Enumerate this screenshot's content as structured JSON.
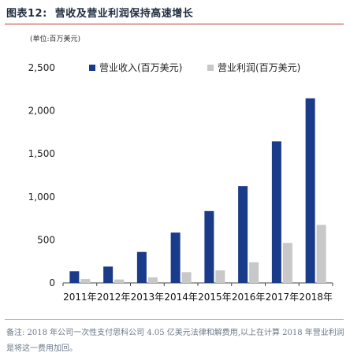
{
  "figure": {
    "label": "图表12:",
    "title": "营收及营业利润保持高速增长",
    "unit": "(单位:百万美元)"
  },
  "chart_data": {
    "type": "bar",
    "categories": [
      "2011年",
      "2012年",
      "2013年",
      "2014年",
      "2015年",
      "2016年",
      "2017年",
      "2018年"
    ],
    "series": [
      {
        "name": "营业收入(百万美元)",
        "color": "#1a3a8a",
        "values": [
          135,
          190,
          360,
          585,
          835,
          1125,
          1645,
          2145
        ]
      },
      {
        "name": "营业利润(百万美元)",
        "color": "#c8c8c8",
        "values": [
          45,
          40,
          65,
          125,
          145,
          240,
          465,
          675
        ]
      }
    ],
    "y_ticks": [
      "0",
      "500",
      "1,000",
      "1,500",
      "2,000",
      "2,500"
    ],
    "ylim": [
      0,
      2500
    ],
    "legend_position": "top",
    "grid": false
  },
  "note": "备注: 2018 年公司一次性支付思科公司 4.05 亿美元法律和解费用,以上在计算 2018 年营业利润是将这一费用加回。"
}
